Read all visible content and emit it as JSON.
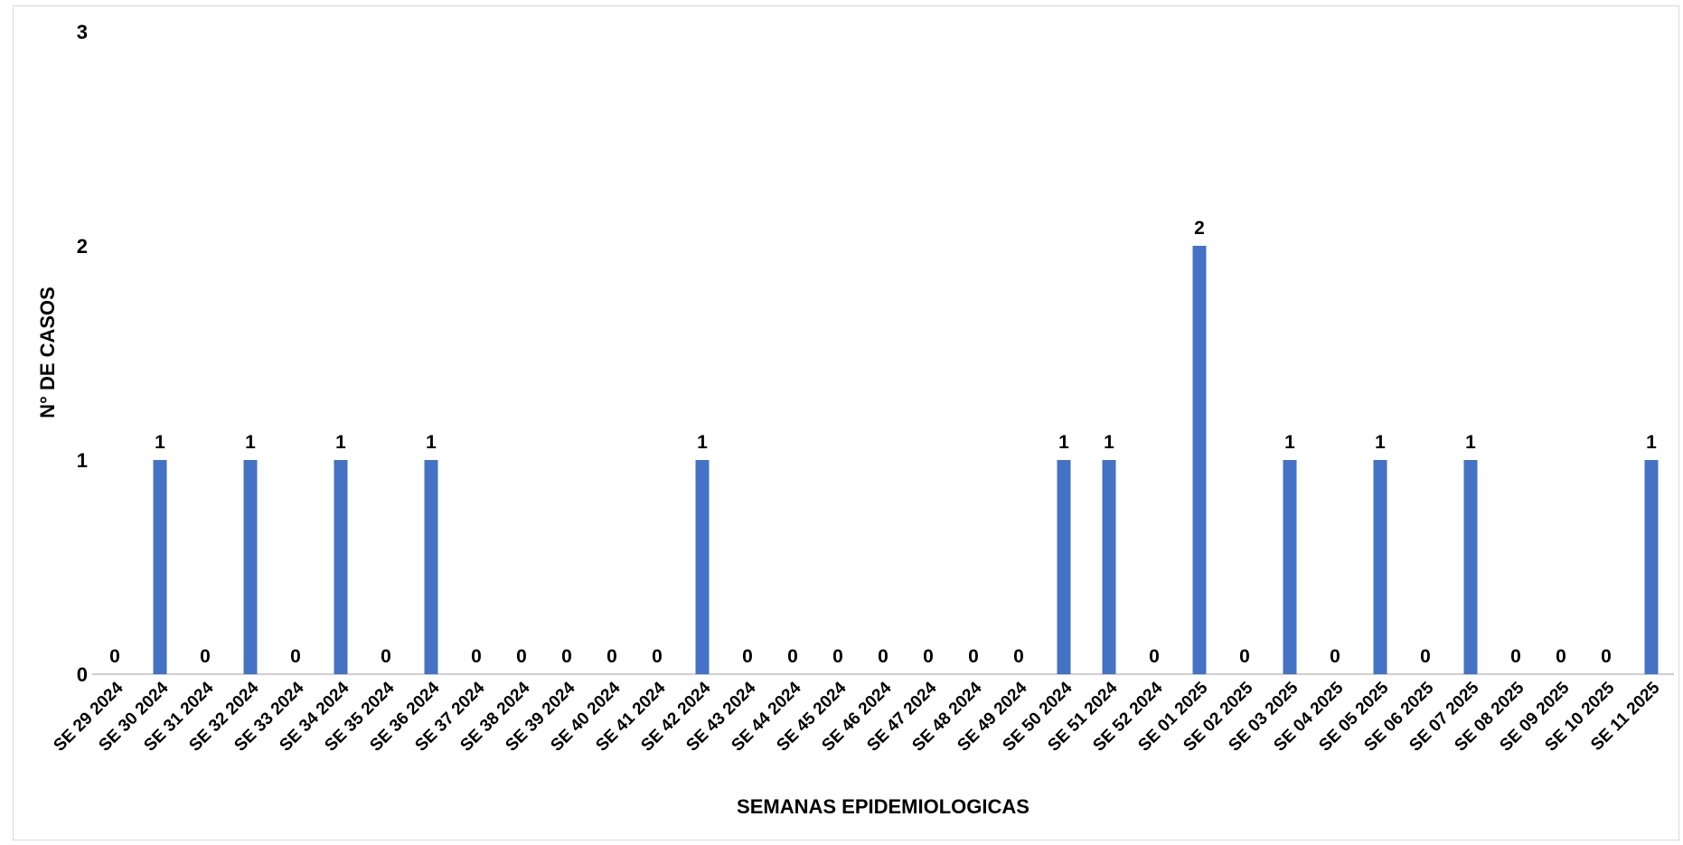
{
  "chart_data": {
    "type": "bar",
    "title": "",
    "xlabel": "SEMANAS EPIDEMIOLOGICAS",
    "ylabel": "N° DE CASOS",
    "ylim": [
      0,
      3
    ],
    "yticks": [
      "0",
      "1",
      "2",
      "3"
    ],
    "grid": false,
    "legend": "none",
    "bar_color": "#4472C4",
    "categories": [
      "SE 29 2024",
      "SE 30 2024",
      "SE 31 2024",
      "SE 32 2024",
      "SE 33 2024",
      "SE 34 2024",
      "SE 35 2024",
      "SE 36 2024",
      "SE 37 2024",
      "SE 38 2024",
      "SE 39 2024",
      "SE 40 2024",
      "SE 41 2024",
      "SE 42 2024",
      "SE 43 2024",
      "SE 44 2024",
      "SE 45 2024",
      "SE 46 2024",
      "SE 47 2024",
      "SE 48 2024",
      "SE 49 2024",
      "SE 50 2024",
      "SE 51 2024",
      "SE 52 2024",
      "SE 01 2025",
      "SE 02 2025",
      "SE 03 2025",
      "SE 04 2025",
      "SE 05 2025",
      "SE 06 2025",
      "SE 07 2025",
      "SE 08 2025",
      "SE 09 2025",
      "SE 10 2025",
      "SE 11 2025"
    ],
    "values": [
      0,
      1,
      0,
      1,
      0,
      1,
      0,
      1,
      0,
      0,
      0,
      0,
      0,
      1,
      0,
      0,
      0,
      0,
      0,
      0,
      0,
      1,
      1,
      0,
      2,
      0,
      1,
      0,
      1,
      0,
      1,
      0,
      0,
      0,
      1
    ]
  }
}
